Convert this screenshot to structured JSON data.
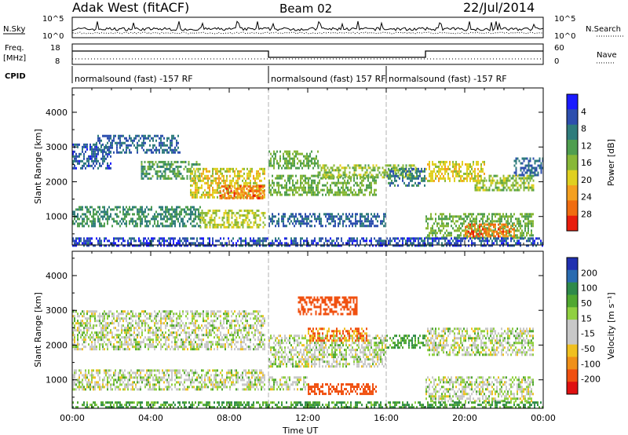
{
  "header": {
    "title": "Adak West (fitACF)",
    "beam": "Beam 02",
    "date": "22/Jul/2014"
  },
  "strips": {
    "nsky_label": "N.Sky",
    "nsky_ticks": [
      "10^5",
      "10^0"
    ],
    "nsearch_label": "N.Search",
    "nsearch_ticks": [
      "10^5",
      "10^0"
    ],
    "freq_label": "Freq.",
    "freq_unit": "[MHz]",
    "freq_ticks": [
      "18",
      "8"
    ],
    "nave_label": "Nave",
    "nave_ticks": [
      "60",
      "0"
    ],
    "cpid_label": "CPID",
    "cpid_segments": [
      {
        "label": "normalsound (fast) -157 RF",
        "start_h": 0,
        "end_h": 10
      },
      {
        "label": "normalsound (fast) 157 RF",
        "start_h": 10,
        "end_h": 16
      },
      {
        "label": "normalsound (fast) -157 RF",
        "start_h": 16,
        "end_h": 24
      }
    ],
    "freq_segments": [
      {
        "start_h": 0,
        "end_h": 10,
        "level": "high"
      },
      {
        "start_h": 10,
        "end_h": 18,
        "level": "low"
      },
      {
        "start_h": 18,
        "end_h": 24,
        "level": "high"
      }
    ]
  },
  "chart_data": [
    {
      "type": "heatmap",
      "ylabel": "Slant Range [km]",
      "xlabel": "Time UT",
      "x_ticks": [
        "00:00",
        "04:00",
        "08:00",
        "12:00",
        "16:00",
        "20:00",
        "00:00"
      ],
      "xlim_hours": [
        0,
        24
      ],
      "ylim_km": [
        180,
        4700
      ],
      "y_ticks": [
        1000,
        2000,
        3000,
        4000
      ],
      "colorbar": {
        "label": "Power [dB]",
        "ticks": [
          "4",
          "8",
          "12",
          "16",
          "20",
          "24",
          "28"
        ],
        "colors": [
          "#1a1aff",
          "#2d4fae",
          "#2f7c7c",
          "#4f9e4f",
          "#88b837",
          "#e0d020",
          "#f4a020",
          "#f06c10",
          "#e81c0c"
        ]
      },
      "bands": [
        {
          "t0": 0.0,
          "t1": 2.0,
          "r0": 2400,
          "r1": 3100,
          "value": 5
        },
        {
          "t0": 1.2,
          "t1": 5.5,
          "r0": 2850,
          "r1": 3350,
          "value": 6
        },
        {
          "t0": 3.5,
          "t1": 6.5,
          "r0": 2100,
          "r1": 2600,
          "value": 12
        },
        {
          "t0": 6.0,
          "t1": 9.8,
          "r0": 1550,
          "r1": 2400,
          "value": 20
        },
        {
          "t0": 7.5,
          "t1": 9.8,
          "r0": 1500,
          "r1": 1900,
          "value": 27
        },
        {
          "t0": 10.0,
          "t1": 15.5,
          "r0": 1600,
          "r1": 2200,
          "value": 14
        },
        {
          "t0": 10.0,
          "t1": 12.5,
          "r0": 2400,
          "r1": 2900,
          "value": 14
        },
        {
          "t0": 12.5,
          "t1": 17.5,
          "r0": 2100,
          "r1": 2500,
          "value": 16
        },
        {
          "t0": 16.0,
          "t1": 18.0,
          "r0": 1900,
          "r1": 2400,
          "value": 8
        },
        {
          "t0": 18.0,
          "t1": 21.0,
          "r0": 2000,
          "r1": 2600,
          "value": 20
        },
        {
          "t0": 20.5,
          "t1": 23.5,
          "r0": 1750,
          "r1": 2200,
          "value": 16
        },
        {
          "t0": 22.5,
          "t1": 24.0,
          "r0": 2200,
          "r1": 2700,
          "value": 6
        },
        {
          "t0": 0.0,
          "t1": 6.5,
          "r0": 750,
          "r1": 1300,
          "value": 10
        },
        {
          "t0": 6.5,
          "t1": 9.8,
          "r0": 700,
          "r1": 1200,
          "value": 18
        },
        {
          "t0": 10.0,
          "t1": 16.0,
          "r0": 700,
          "r1": 1100,
          "value": 6
        },
        {
          "t0": 18.0,
          "t1": 23.5,
          "r0": 400,
          "r1": 1100,
          "value": 14
        },
        {
          "t0": 20.0,
          "t1": 22.5,
          "r0": 450,
          "r1": 800,
          "value": 27
        },
        {
          "t0": 0.0,
          "t1": 24.0,
          "r0": 180,
          "r1": 400,
          "value": 4
        }
      ]
    },
    {
      "type": "heatmap",
      "ylabel": "Slant Range [km]",
      "xlabel": "Time UT",
      "x_ticks": [
        "00:00",
        "04:00",
        "08:00",
        "12:00",
        "16:00",
        "20:00",
        "00:00"
      ],
      "xlim_hours": [
        0,
        24
      ],
      "ylim_km": [
        180,
        4700
      ],
      "y_ticks": [
        1000,
        2000,
        3000,
        4000
      ],
      "colorbar": {
        "label": "Velocity [m s⁻¹]",
        "ticks": [
          "200",
          "100",
          "50",
          "15",
          "-15",
          "-50",
          "-100",
          "-200"
        ],
        "colors": [
          "#2030b0",
          "#2a6bb0",
          "#2e8a4a",
          "#50a830",
          "#90d040",
          "#c8c8c8",
          "#c8c8c8",
          "#f0c020",
          "#f09018",
          "#f05010",
          "#e01010"
        ]
      },
      "bands": [
        {
          "t0": 0.0,
          "t1": 9.8,
          "r0": 1900,
          "r1": 3000,
          "value": 0
        },
        {
          "t0": 10.0,
          "t1": 16.0,
          "r0": 1400,
          "r1": 2300,
          "value": 0
        },
        {
          "t0": 11.5,
          "t1": 14.5,
          "r0": 2900,
          "r1": 3400,
          "value": -60
        },
        {
          "t0": 12.0,
          "t1": 15.0,
          "r0": 2100,
          "r1": 2500,
          "value": -40
        },
        {
          "t0": 16.0,
          "t1": 18.0,
          "r0": 1900,
          "r1": 2300,
          "value": 30
        },
        {
          "t0": 18.0,
          "t1": 23.5,
          "r0": 1700,
          "r1": 2500,
          "value": 0
        },
        {
          "t0": 0.0,
          "t1": 9.8,
          "r0": 700,
          "r1": 1300,
          "value": 0
        },
        {
          "t0": 10.0,
          "t1": 12.0,
          "r0": 700,
          "r1": 1100,
          "value": 0
        },
        {
          "t0": 12.0,
          "t1": 15.5,
          "r0": 600,
          "r1": 900,
          "value": -60
        },
        {
          "t0": 18.0,
          "t1": 23.5,
          "r0": 400,
          "r1": 1100,
          "value": 0
        },
        {
          "t0": 0.0,
          "t1": 24.0,
          "r0": 180,
          "r1": 380,
          "value": 30
        }
      ]
    }
  ]
}
